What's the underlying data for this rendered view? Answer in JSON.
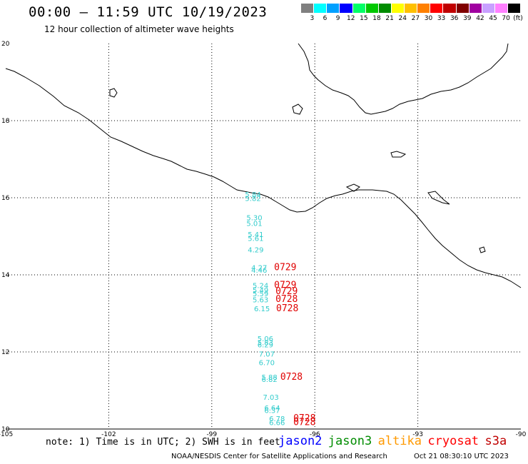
{
  "header": {
    "title": "00:00 – 11:59 UTC 10/19/2023",
    "subtitle": "12 hour collection of altimeter wave heights"
  },
  "legend": {
    "unit": "(ft)",
    "bins": [
      {
        "label": "3",
        "color": "#808080"
      },
      {
        "label": "6",
        "color": "#00ffff"
      },
      {
        "label": "9",
        "color": "#00a0ff"
      },
      {
        "label": "12",
        "color": "#0000ff"
      },
      {
        "label": "15",
        "color": "#00ff66"
      },
      {
        "label": "18",
        "color": "#00c800"
      },
      {
        "label": "21",
        "color": "#008c00"
      },
      {
        "label": "24",
        "color": "#ffff00"
      },
      {
        "label": "27",
        "color": "#ffc000"
      },
      {
        "label": "30",
        "color": "#ff8000"
      },
      {
        "label": "33",
        "color": "#ff0000"
      },
      {
        "label": "36",
        "color": "#c00000"
      },
      {
        "label": "39",
        "color": "#800000"
      },
      {
        "label": "42",
        "color": "#a000a0"
      },
      {
        "label": "45",
        "color": "#c8a0ff"
      },
      {
        "label": "70",
        "color": "#ff80ff"
      },
      {
        "label": "",
        "color": "#000000"
      }
    ]
  },
  "map": {
    "lon_range": [
      -105,
      -90
    ],
    "lat_range": [
      10,
      20
    ],
    "lon_ticks": [
      "-105",
      "-102",
      "-99",
      "-96",
      "-93",
      "-90"
    ],
    "lat_ticks": [
      "20",
      "18",
      "16",
      "14",
      "12",
      "10"
    ],
    "observations": [
      {
        "lon": -97.8,
        "lat": 16.02,
        "swh": "5.84",
        "color": "#33cccc"
      },
      {
        "lon": -97.8,
        "lat": 15.92,
        "swh": "5.82",
        "color": "#33cccc"
      },
      {
        "lon": -97.76,
        "lat": 15.42,
        "swh": "5.30",
        "color": "#33cccc"
      },
      {
        "lon": -97.76,
        "lat": 15.27,
        "swh": "5.01",
        "color": "#33cccc"
      },
      {
        "lon": -97.72,
        "lat": 14.98,
        "swh": "5.41",
        "color": "#33cccc"
      },
      {
        "lon": -97.72,
        "lat": 14.88,
        "swh": "5.61",
        "color": "#33cccc"
      },
      {
        "lon": -97.72,
        "lat": 14.58,
        "swh": "4.29",
        "color": "#33cccc"
      },
      {
        "lon": -97.62,
        "lat": 14.12,
        "swh": "4.27",
        "color": "#33cccc"
      },
      {
        "lon": -97.62,
        "lat": 14.06,
        "swh": "4.46",
        "color": "#33cccc"
      },
      {
        "lon": -97.58,
        "lat": 13.66,
        "swh": "5.24",
        "color": "#33cccc"
      },
      {
        "lon": -97.58,
        "lat": 13.54,
        "swh": "5.49",
        "color": "#33cccc"
      },
      {
        "lon": -97.58,
        "lat": 13.44,
        "swh": "5.59",
        "color": "#33cccc"
      },
      {
        "lon": -97.58,
        "lat": 13.29,
        "swh": "5.63",
        "color": "#33cccc"
      },
      {
        "lon": -97.54,
        "lat": 13.06,
        "swh": "6.15",
        "color": "#33cccc"
      },
      {
        "lon": -97.44,
        "lat": 12.28,
        "swh": "5.06",
        "color": "#33cccc"
      },
      {
        "lon": -97.44,
        "lat": 12.18,
        "swh": "5.83",
        "color": "#33cccc"
      },
      {
        "lon": -97.44,
        "lat": 12.12,
        "swh": "6.29",
        "color": "#33cccc"
      },
      {
        "lon": -97.4,
        "lat": 11.88,
        "swh": "7.07",
        "color": "#33cccc"
      },
      {
        "lon": -97.4,
        "lat": 11.66,
        "swh": "6.70",
        "color": "#33cccc"
      },
      {
        "lon": -97.32,
        "lat": 11.28,
        "swh": "5.88",
        "color": "#33cccc"
      },
      {
        "lon": -97.32,
        "lat": 11.22,
        "swh": "6.82",
        "color": "#33cccc"
      },
      {
        "lon": -97.28,
        "lat": 10.76,
        "swh": "7.03",
        "color": "#33cccc"
      },
      {
        "lon": -97.24,
        "lat": 10.48,
        "swh": "6.64",
        "color": "#33cccc"
      },
      {
        "lon": -97.24,
        "lat": 10.42,
        "swh": "6.37",
        "color": "#33cccc"
      },
      {
        "lon": -97.1,
        "lat": 10.2,
        "swh": "6.78",
        "color": "#33cccc"
      },
      {
        "lon": -97.1,
        "lat": 10.1,
        "swh": "6.66",
        "color": "#33cccc"
      }
    ],
    "time_labels": [
      {
        "lon": -96.86,
        "lat": 14.12,
        "text": "0729",
        "color": "#e00000"
      },
      {
        "lon": -96.86,
        "lat": 13.66,
        "text": "0729",
        "color": "#e00000"
      },
      {
        "lon": -96.82,
        "lat": 13.5,
        "text": "0729",
        "color": "#e00000"
      },
      {
        "lon": -96.82,
        "lat": 13.3,
        "text": "0728",
        "color": "#e00000"
      },
      {
        "lon": -96.8,
        "lat": 13.06,
        "text": "0728",
        "color": "#e00000"
      },
      {
        "lon": -96.68,
        "lat": 11.28,
        "text": "0728",
        "color": "#e00000"
      },
      {
        "lon": -96.3,
        "lat": 10.2,
        "text": "0728",
        "color": "#e00000"
      },
      {
        "lon": -96.3,
        "lat": 10.1,
        "text": "0728",
        "color": "#e00000"
      }
    ]
  },
  "footer": {
    "note": "note: 1) Time is in UTC; 2) SWH is in feet",
    "missions": [
      {
        "name": "jason2",
        "color": "#0000ff"
      },
      {
        "name": "jason3",
        "color": "#008c00"
      },
      {
        "name": "altika",
        "color": "#ff9900"
      },
      {
        "name": "cryosat",
        "color": "#ff0000"
      },
      {
        "name": "s3a",
        "color": "#c00000"
      }
    ],
    "credit": "NOAA/NESDIS Center for Satellite Applications and Research",
    "timestamp": "Oct 21 08:30:10 UTC 2023"
  }
}
